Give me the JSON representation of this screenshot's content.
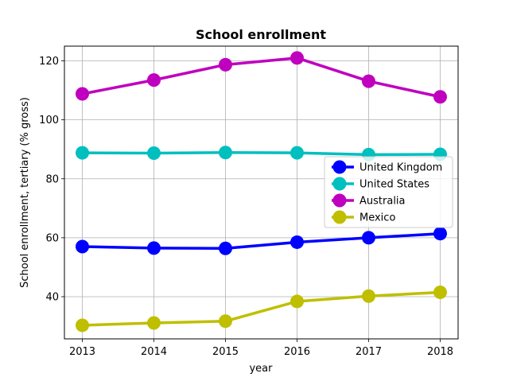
{
  "chart_data": {
    "type": "line",
    "title": "School enrollment",
    "xlabel": "year",
    "ylabel": "School enrollment, tertiary (% gross)",
    "x": [
      2013,
      2014,
      2015,
      2016,
      2017,
      2018
    ],
    "xlim": [
      2012.75,
      2018.25
    ],
    "ylim": [
      25.7,
      125.0
    ],
    "x_ticks": [
      2013,
      2014,
      2015,
      2016,
      2017,
      2018
    ],
    "y_ticks": [
      40,
      60,
      80,
      100,
      120
    ],
    "grid": true,
    "legend_position": "center-right",
    "series": [
      {
        "name": "United Kingdom",
        "color": "#0000ff",
        "values": [
          57.0,
          56.5,
          56.4,
          58.5,
          60.0,
          61.4
        ]
      },
      {
        "name": "United States",
        "color": "#00bfbf",
        "values": [
          88.8,
          88.7,
          88.9,
          88.8,
          88.2,
          88.3
        ]
      },
      {
        "name": "Australia",
        "color": "#bf00bf",
        "values": [
          108.8,
          113.5,
          118.7,
          121.0,
          113.1,
          107.8
        ]
      },
      {
        "name": "Mexico",
        "color": "#bfbf00",
        "values": [
          30.3,
          31.1,
          31.7,
          38.4,
          40.2,
          41.5
        ]
      }
    ]
  }
}
